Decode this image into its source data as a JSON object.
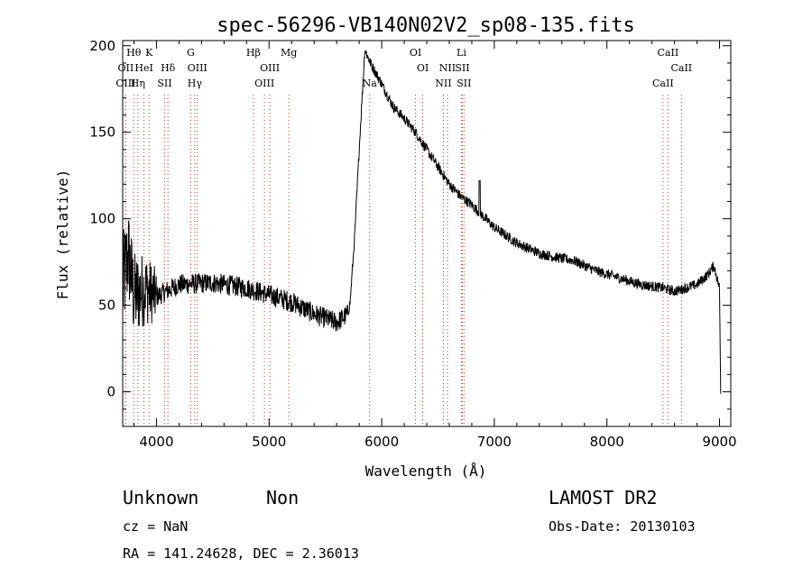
{
  "chart_data": {
    "type": "line",
    "title": "spec-56296-VB140N02V2_sp08-135.fits",
    "xlabel": "Wavelength (Å)",
    "ylabel": "Flux (relative)",
    "xlim": [
      3700,
      9100
    ],
    "ylim": [
      -20,
      203
    ],
    "xticks": [
      4000,
      5000,
      6000,
      7000,
      8000,
      9000
    ],
    "yticks": [
      0,
      50,
      100,
      150,
      200
    ],
    "spectrum_anchors": {
      "x": [
        3700,
        3750,
        3800,
        3900,
        4000,
        4200,
        4500,
        4800,
        5000,
        5200,
        5400,
        5600,
        5700,
        5720,
        5760,
        5800,
        5850,
        5900,
        6000,
        6100,
        6200,
        6300,
        6400,
        6500,
        6600,
        6700,
        6800,
        7000,
        7200,
        7400,
        7600,
        7700,
        7900,
        8100,
        8300,
        8500,
        8600,
        8700,
        8800,
        8900,
        8950,
        9000,
        9010
      ],
      "y": [
        60,
        80,
        55,
        60,
        55,
        62,
        63,
        60,
        56,
        52,
        45,
        40,
        45,
        52,
        90,
        140,
        198,
        190,
        178,
        165,
        158,
        150,
        140,
        130,
        120,
        113,
        108,
        95,
        86,
        80,
        77,
        76,
        70,
        66,
        62,
        60,
        58,
        60,
        62,
        68,
        73,
        60,
        0
      ]
    },
    "noise": {
      "blue_end_amplitude": 25,
      "mid_amplitude": 6,
      "red_amplitude": 3
    },
    "emission_features": [
      {
        "x": 6870,
        "y": 122
      }
    ],
    "spectral_lines": [
      {
        "name": "Hθ",
        "x": 3798,
        "row": 1
      },
      {
        "name": "K",
        "x": 3934,
        "row": 1
      },
      {
        "name": "OII",
        "x": 3727,
        "row": 2
      },
      {
        "name": "HeI",
        "x": 3889,
        "row": 2
      },
      {
        "name": "Hδ",
        "x": 4102,
        "row": 2
      },
      {
        "name": "OIII",
        "x": 3727,
        "row": 3
      },
      {
        "name": "Hη",
        "x": 3835,
        "row": 3
      },
      {
        "name": "SII",
        "x": 4072,
        "row": 3
      },
      {
        "name": "G",
        "x": 4304,
        "row": 1
      },
      {
        "name": "OIII",
        "x": 4363,
        "row": 2
      },
      {
        "name": "Hγ",
        "x": 4340,
        "row": 3
      },
      {
        "name": "Hβ",
        "x": 4861,
        "row": 1
      },
      {
        "name": "Mg",
        "x": 5175,
        "row": 1
      },
      {
        "name": "OIII",
        "x": 5007,
        "row": 2
      },
      {
        "name": "OIII",
        "x": 4959,
        "row": 3
      },
      {
        "name": "Na",
        "x": 5893,
        "row": 3
      },
      {
        "name": "OI",
        "x": 6300,
        "row": 1
      },
      {
        "name": "OI",
        "x": 6364,
        "row": 2
      },
      {
        "name": "Li",
        "x": 6708,
        "row": 1
      },
      {
        "name": "NII",
        "x": 6584,
        "row": 2
      },
      {
        "name": "SII",
        "x": 6716,
        "row": 2
      },
      {
        "name": "NII",
        "x": 6548,
        "row": 3
      },
      {
        "name": "SII",
        "x": 6731,
        "row": 3
      },
      {
        "name": "CaII",
        "x": 8542,
        "row": 1
      },
      {
        "name": "CaII",
        "x": 8662,
        "row": 2
      },
      {
        "name": "CaII",
        "x": 8498,
        "row": 3
      }
    ]
  },
  "info": {
    "classification": "Unknown",
    "subclass": "Non",
    "cz": "cz = NaN",
    "coords": "RA = 141.24628, DEC =   2.36013",
    "survey": "LAMOST DR2",
    "obs_date": "Obs-Date: 20130103"
  }
}
